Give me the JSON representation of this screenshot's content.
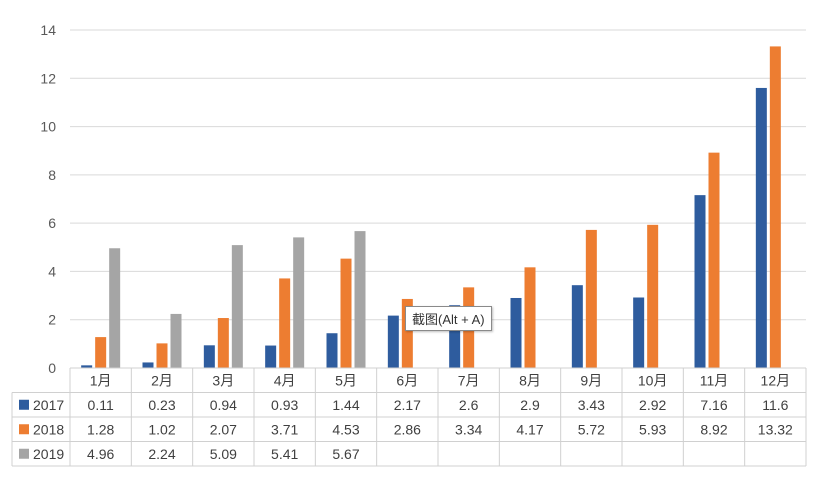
{
  "chart_data": {
    "type": "bar",
    "title": "",
    "xlabel": "",
    "ylabel": "",
    "ylim": [
      0,
      14
    ],
    "yticks": [
      0,
      2,
      4,
      6,
      8,
      10,
      12,
      14
    ],
    "grid": true,
    "legend": "data-table-left",
    "categories": [
      "1月",
      "2月",
      "3月",
      "4月",
      "5月",
      "6月",
      "7月",
      "8月",
      "9月",
      "10月",
      "11月",
      "12月"
    ],
    "series": [
      {
        "name": "2017",
        "color": "#2E5C9E",
        "values": [
          0.11,
          0.23,
          0.94,
          0.93,
          1.44,
          2.17,
          2.6,
          2.9,
          3.43,
          2.92,
          7.16,
          11.6
        ],
        "labels": [
          "0.11",
          "0.23",
          "0.94",
          "0.93",
          "1.44",
          "2.17",
          "2.6",
          "2.9",
          "3.43",
          "2.92",
          "7.16",
          "11.6"
        ]
      },
      {
        "name": "2018",
        "color": "#ED7D31",
        "values": [
          1.28,
          1.02,
          2.07,
          3.71,
          4.53,
          2.86,
          3.34,
          4.17,
          5.72,
          5.93,
          8.92,
          13.32
        ],
        "labels": [
          "1.28",
          "1.02",
          "2.07",
          "3.71",
          "4.53",
          "2.86",
          "3.34",
          "4.17",
          "5.72",
          "5.93",
          "8.92",
          "13.32"
        ]
      },
      {
        "name": "2019",
        "color": "#A5A5A5",
        "values": [
          4.96,
          2.24,
          5.09,
          5.41,
          5.67,
          null,
          null,
          null,
          null,
          null,
          null,
          null
        ],
        "labels": [
          "4.96",
          "2.24",
          "5.09",
          "5.41",
          "5.67",
          "",
          "",
          "",
          "",
          "",
          "",
          ""
        ]
      }
    ]
  },
  "overlay": {
    "tooltip": "截图(Alt + A)"
  }
}
